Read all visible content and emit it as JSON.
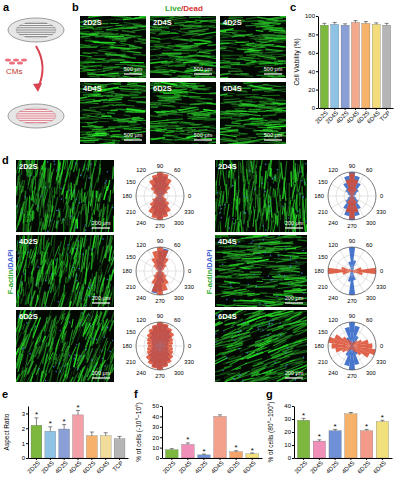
{
  "panel_labels": [
    "a",
    "b",
    "c",
    "d",
    "e",
    "f",
    "g"
  ],
  "schematic": {
    "cell_label": "CMs"
  },
  "live_dead": {
    "title_parts": [
      "Live",
      "/Dead"
    ],
    "images": [
      "2D2S",
      "2D4S",
      "4D2S",
      "4D4S",
      "6D2S",
      "6D4S"
    ],
    "scale_bar": "500 μm"
  },
  "f_actin": {
    "stain_parts": [
      "F-actin",
      "/DAPI"
    ],
    "images": [
      "2D2S",
      "2D4S",
      "4D2S",
      "4D4S",
      "6D2S",
      "6D4S"
    ],
    "scale_bar": "200 μm"
  },
  "chart_data": [
    {
      "type": "bar",
      "ylabel": "Cell Viability (%)",
      "categories": [
        "2D2S",
        "2D4S",
        "4D2S",
        "4D4S",
        "6D2S",
        "6D4S",
        "TCP"
      ],
      "values": [
        90,
        91,
        90,
        93,
        92,
        91,
        90
      ],
      "errors": [
        2,
        2,
        1.5,
        2,
        2,
        1.5,
        2
      ],
      "colors": [
        "#7cb83e",
        "#8ec3e6",
        "#8a9fd6",
        "#f3a98c",
        "#f6b26b",
        "#f2dc7c",
        "#b5b5b5"
      ],
      "ylim": [
        0,
        100
      ],
      "yticks": [
        0,
        20,
        40,
        60,
        80,
        100
      ]
    },
    {
      "type": "rose",
      "x": [
        0,
        15,
        30,
        45,
        60,
        75,
        90,
        105,
        120,
        135,
        150,
        165,
        180,
        195,
        210,
        225,
        240,
        255,
        270,
        285,
        300,
        315,
        330,
        345
      ],
      "xlim": [
        0,
        360
      ],
      "xticks": [
        0,
        60,
        90,
        120,
        150,
        180,
        210,
        240,
        270,
        300,
        330
      ],
      "ylim": [
        0,
        1
      ],
      "tick_labels": "x",
      "series": [
        {
          "color": "#3d6fc9",
          "values": [
            0.08,
            0.1,
            0.2,
            0.35,
            0.6,
            0.85,
            0.95,
            0.8,
            0.55,
            0.3,
            0.15,
            0.1,
            0.08,
            0.1,
            0.2,
            0.35,
            0.6,
            0.85,
            0.95,
            0.8,
            0.55,
            0.3,
            0.15,
            0.1
          ]
        },
        {
          "color": "#dc4a2e",
          "values": [
            0.15,
            0.2,
            0.35,
            0.55,
            0.8,
            0.95,
            1.0,
            0.9,
            0.75,
            0.5,
            0.3,
            0.18,
            0.15,
            0.2,
            0.35,
            0.55,
            0.8,
            0.95,
            1.0,
            0.9,
            0.75,
            0.5,
            0.3,
            0.18
          ]
        }
      ]
    },
    {
      "type": "rose",
      "x": [
        0,
        15,
        30,
        45,
        60,
        75,
        90,
        105,
        120,
        135,
        150,
        165,
        180,
        195,
        210,
        225,
        240,
        255,
        270,
        285,
        300,
        315,
        330,
        345
      ],
      "xlim": [
        0,
        360
      ],
      "xticks": [
        0,
        60,
        90,
        120,
        150,
        180,
        210,
        240,
        270,
        300,
        330
      ],
      "ylim": [
        0,
        1
      ],
      "tick_labels": "x",
      "series": [
        {
          "color": "#3d6fc9",
          "values": [
            0.1,
            0.12,
            0.2,
            0.35,
            0.6,
            0.85,
            1.0,
            0.85,
            0.6,
            0.35,
            0.2,
            0.12,
            0.1,
            0.12,
            0.2,
            0.35,
            0.6,
            0.85,
            1.0,
            0.85,
            0.6,
            0.35,
            0.2,
            0.12
          ]
        },
        {
          "color": "#dc4a2e",
          "values": [
            0.05,
            0.05,
            0.08,
            0.15,
            0.35,
            0.7,
            0.95,
            0.7,
            0.35,
            0.15,
            0.08,
            0.05,
            0.05,
            0.05,
            0.08,
            0.15,
            0.35,
            0.7,
            0.95,
            0.7,
            0.35,
            0.15,
            0.08,
            0.05
          ]
        }
      ]
    },
    {
      "type": "rose",
      "x": [
        0,
        15,
        30,
        45,
        60,
        75,
        90,
        105,
        120,
        135,
        150,
        165,
        180,
        195,
        210,
        225,
        240,
        255,
        270,
        285,
        300,
        315,
        330,
        345
      ],
      "xlim": [
        0,
        360
      ],
      "xticks": [
        0,
        60,
        90,
        120,
        150,
        180,
        210,
        240,
        270,
        300,
        330
      ],
      "ylim": [
        0,
        1
      ],
      "tick_labels": "x",
      "series": [
        {
          "color": "#3d6fc9",
          "values": [
            0.05,
            0.05,
            0.08,
            0.12,
            0.3,
            0.95,
            0.85,
            0.5,
            0.25,
            0.1,
            0.06,
            0.05,
            0.05,
            0.05,
            0.08,
            0.12,
            0.3,
            0.95,
            0.85,
            0.5,
            0.25,
            0.1,
            0.06,
            0.05
          ]
        },
        {
          "color": "#dc4a2e",
          "values": [
            0.1,
            0.12,
            0.2,
            0.35,
            0.6,
            0.9,
            1.0,
            0.85,
            0.6,
            0.35,
            0.2,
            0.12,
            0.1,
            0.12,
            0.2,
            0.35,
            0.6,
            0.9,
            1.0,
            0.85,
            0.6,
            0.35,
            0.2,
            0.12
          ]
        }
      ]
    },
    {
      "type": "rose",
      "x": [
        0,
        15,
        30,
        45,
        60,
        75,
        90,
        105,
        120,
        135,
        150,
        165,
        180,
        195,
        210,
        225,
        240,
        255,
        270,
        285,
        300,
        315,
        330,
        345
      ],
      "xlim": [
        0,
        360
      ],
      "xticks": [
        0,
        60,
        90,
        120,
        150,
        180,
        210,
        240,
        270,
        300,
        330
      ],
      "ylim": [
        0,
        1
      ],
      "tick_labels": "x",
      "series": [
        {
          "color": "#3d6fc9",
          "values": [
            0.03,
            0.03,
            0.05,
            0.08,
            0.15,
            0.45,
            1.0,
            0.4,
            0.12,
            0.06,
            0.04,
            0.03,
            0.03,
            0.03,
            0.05,
            0.08,
            0.15,
            0.45,
            1.0,
            0.4,
            0.12,
            0.06,
            0.04,
            0.03
          ]
        },
        {
          "color": "#dc4a2e",
          "values": [
            1.0,
            0.4,
            0.1,
            0.05,
            0.03,
            0.03,
            0.03,
            0.03,
            0.05,
            0.08,
            0.15,
            0.45,
            1.0,
            0.4,
            0.1,
            0.05,
            0.03,
            0.03,
            0.03,
            0.03,
            0.05,
            0.08,
            0.15,
            0.45
          ]
        }
      ]
    },
    {
      "type": "rose",
      "x": [
        0,
        15,
        30,
        45,
        60,
        75,
        90,
        105,
        120,
        135,
        150,
        165,
        180,
        195,
        210,
        225,
        240,
        255,
        270,
        285,
        300,
        315,
        330,
        345
      ],
      "xlim": [
        0,
        360
      ],
      "xticks": [
        0,
        60,
        90,
        120,
        150,
        180,
        210,
        240,
        270,
        300,
        330
      ],
      "ylim": [
        0,
        1
      ],
      "tick_labels": "x",
      "series": [
        {
          "color": "#3d6fc9",
          "values": [
            0.3,
            0.35,
            0.45,
            0.6,
            0.75,
            0.9,
            0.95,
            0.85,
            0.7,
            0.55,
            0.4,
            0.35,
            0.3,
            0.35,
            0.45,
            0.6,
            0.75,
            0.9,
            0.95,
            0.85,
            0.7,
            0.55,
            0.4,
            0.35
          ]
        },
        {
          "color": "#dc4a2e",
          "values": [
            0.5,
            0.55,
            0.6,
            0.75,
            0.85,
            0.95,
            1.0,
            0.9,
            0.8,
            0.7,
            0.6,
            0.55,
            0.5,
            0.55,
            0.6,
            0.75,
            0.85,
            0.95,
            1.0,
            0.9,
            0.8,
            0.7,
            0.6,
            0.55
          ]
        }
      ]
    },
    {
      "type": "rose",
      "x": [
        0,
        15,
        30,
        45,
        60,
        75,
        90,
        105,
        120,
        135,
        150,
        165,
        180,
        195,
        210,
        225,
        240,
        255,
        270,
        285,
        300,
        315,
        330,
        345
      ],
      "xlim": [
        0,
        360
      ],
      "xticks": [
        0,
        60,
        90,
        120,
        150,
        180,
        210,
        240,
        270,
        300,
        330
      ],
      "ylim": [
        0,
        1
      ],
      "tick_labels": "x",
      "series": [
        {
          "color": "#3d6fc9",
          "values": [
            0.05,
            0.05,
            0.1,
            0.2,
            0.45,
            0.85,
            1.0,
            0.8,
            0.4,
            0.15,
            0.08,
            0.05,
            0.05,
            0.05,
            0.1,
            0.2,
            0.45,
            0.85,
            1.0,
            0.8,
            0.4,
            0.15,
            0.08,
            0.05
          ]
        },
        {
          "color": "#dc4a2e",
          "values": [
            0.85,
            0.7,
            0.45,
            0.3,
            0.2,
            0.15,
            0.15,
            0.2,
            0.3,
            0.5,
            0.8,
            1.0,
            0.85,
            0.7,
            0.45,
            0.3,
            0.2,
            0.15,
            0.15,
            0.2,
            0.3,
            0.5,
            0.8,
            1.0
          ]
        }
      ]
    },
    {
      "type": "bar",
      "ylabel": "Aspect Ratio",
      "categories": [
        "2D2S",
        "2D4S",
        "4D2S",
        "4D4S",
        "6D2S",
        "6D4S",
        "TCP"
      ],
      "values": [
        2.2,
        1.8,
        1.95,
        2.9,
        1.5,
        1.5,
        1.3
      ],
      "errors": [
        0.5,
        0.3,
        0.3,
        0.3,
        0.25,
        0.2,
        0.15
      ],
      "significance": [
        "*",
        "*",
        "*",
        "*",
        null,
        null,
        null
      ],
      "colors": [
        "#7cb83e",
        "#8ec3e6",
        "#8a9fd6",
        "#f3a0a8",
        "#f6b26b",
        "#f2dc9c",
        "#b5b5b5"
      ],
      "ylim": [
        0,
        3.5
      ],
      "yticks": [
        0,
        1,
        2,
        3
      ]
    },
    {
      "type": "bar",
      "ylabel": "% of cells (-10°~10°)",
      "categories": [
        "2D2S",
        "2D4S",
        "4D2S",
        "4D4S",
        "6D2S",
        "6D4S"
      ],
      "values": [
        8,
        13,
        3,
        40,
        6,
        4
      ],
      "errors": [
        1,
        1.5,
        0.8,
        1.5,
        1,
        0.8
      ],
      "significance": [
        null,
        "*",
        "*",
        null,
        "*",
        "*"
      ],
      "colors": [
        "#7cb83e",
        "#f08fb8",
        "#6f8fd6",
        "#f3a08c",
        "#f6a26b",
        "#f2e07c"
      ],
      "ylim": [
        0,
        50
      ],
      "yticks": [
        0,
        10,
        20,
        30,
        40,
        50
      ]
    },
    {
      "type": "bar",
      "ylabel": "% of cells (80°~100°)",
      "categories": [
        "2D2S",
        "2D4S",
        "4D2S",
        "4D4S",
        "6D2S",
        "6D4S"
      ],
      "values": [
        29,
        13,
        21,
        34,
        21,
        28
      ],
      "errors": [
        1.5,
        1,
        1,
        1,
        1,
        1
      ],
      "significance": [
        "*",
        "*",
        "*",
        null,
        "*",
        "*"
      ],
      "colors": [
        "#7cb83e",
        "#f08fb8",
        "#6f8fd6",
        "#f6b26b",
        "#f39a8a",
        "#f2e07c"
      ],
      "ylim": [
        0,
        40
      ],
      "yticks": [
        0,
        10,
        20,
        30,
        40
      ]
    }
  ]
}
